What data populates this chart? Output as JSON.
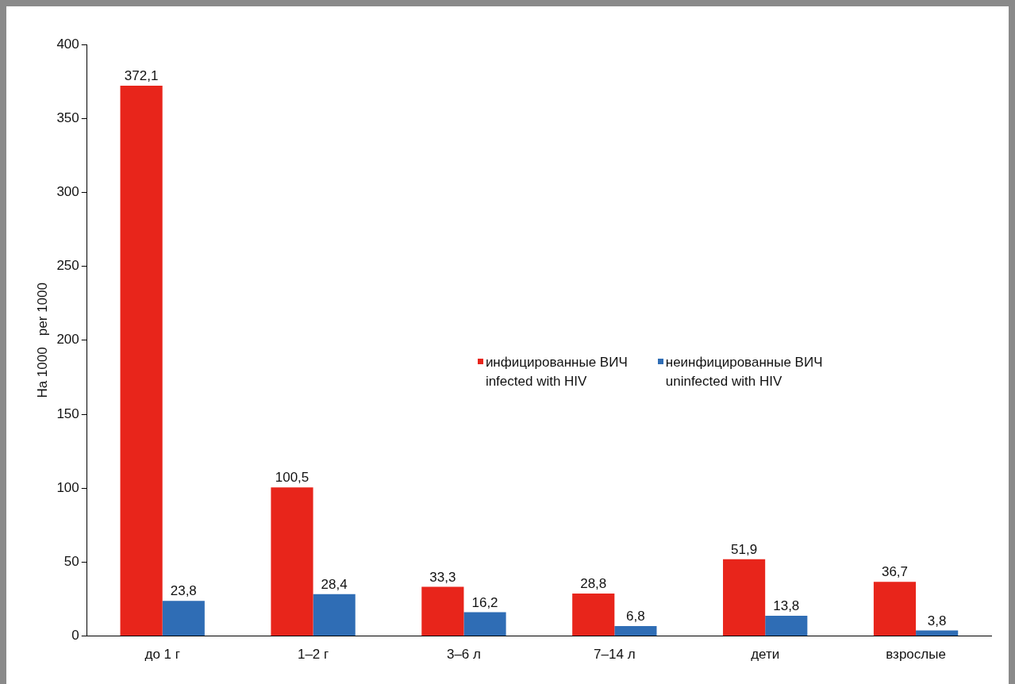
{
  "chart_data": {
    "type": "bar",
    "ylabel": "На 1000   per 1000",
    "categories": [
      "до 1 г",
      "1–2 г",
      "3–6 л",
      "7–14 л",
      "дети",
      "взрослые"
    ],
    "series": [
      {
        "name": "инфицированные ВИЧ\ninfected with HIV",
        "color": "#e8251b",
        "values": [
          372.1,
          100.5,
          33.3,
          28.8,
          51.9,
          36.7
        ],
        "value_labels": [
          "372,1",
          "100,5",
          "33,3",
          "28,8",
          "51,9",
          "36,7"
        ]
      },
      {
        "name": "неинфицированные ВИЧ\nuninfected with HIV",
        "color": "#2f6db5",
        "values": [
          23.8,
          28.4,
          16.2,
          6.8,
          13.8,
          3.8
        ],
        "value_labels": [
          "23,8",
          "28,4",
          "16,2",
          "6,8",
          "13,8",
          "3,8"
        ]
      }
    ],
    "ylim": [
      0,
      400
    ],
    "yticks": [
      0,
      50,
      100,
      150,
      200,
      250,
      300,
      350,
      400
    ],
    "grid": false,
    "legend": "center"
  }
}
